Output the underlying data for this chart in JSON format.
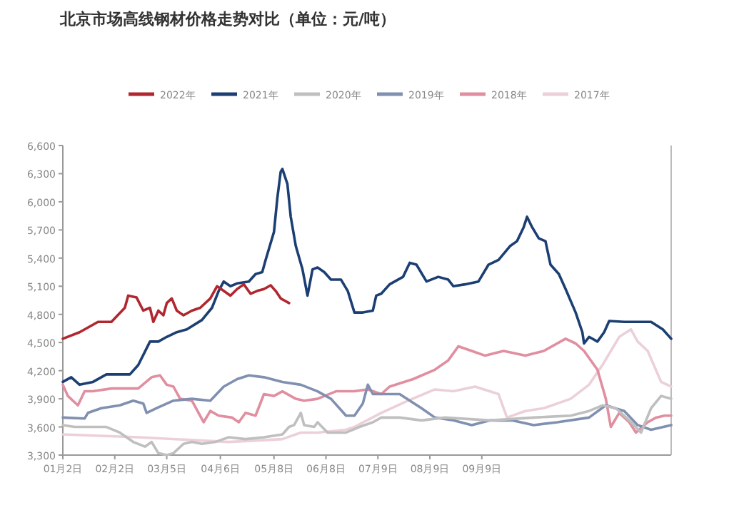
{
  "chart_data": {
    "type": "line",
    "title": "北京市场高线钢材价格走势对比（单位：元/吨）",
    "legend": "top",
    "marker": "none",
    "line_style": "solid",
    "grid": false,
    "xlim": [
      "--01-02",
      "--12-31"
    ],
    "ylim": [
      3300,
      6600
    ],
    "xticks": [
      {
        "value": "--01-02",
        "label": "01月2日"
      },
      {
        "value": "--02-02",
        "label": "02月2日"
      },
      {
        "value": "--03-05",
        "label": "03月5日"
      },
      {
        "value": "--04-06",
        "label": "04月6日"
      },
      {
        "value": "--05-08",
        "label": "05月8日"
      },
      {
        "value": "--06-08",
        "label": "06月8日"
      },
      {
        "value": "--07-09",
        "label": "07月9日"
      },
      {
        "value": "--08-09",
        "label": "08月9日"
      },
      {
        "value": "--09-09",
        "label": "09月9日"
      }
    ],
    "yticks": [
      {
        "value": 3300,
        "label": "3,300"
      },
      {
        "value": 3600,
        "label": "3,600"
      },
      {
        "value": 3900,
        "label": "3,900"
      },
      {
        "value": 4200,
        "label": "4,200"
      },
      {
        "value": 4500,
        "label": "4,500"
      },
      {
        "value": 4800,
        "label": "4,800"
      },
      {
        "value": 5100,
        "label": "5,100"
      },
      {
        "value": 5400,
        "label": "5,400"
      },
      {
        "value": 5700,
        "label": "5,700"
      },
      {
        "value": 6000,
        "label": "6,000"
      },
      {
        "value": 6300,
        "label": "6,300"
      },
      {
        "value": 6600,
        "label": "6,600"
      }
    ],
    "series": [
      {
        "name": "2022年",
        "color": "#b0272f",
        "x": [
          "--01-02",
          "--01-12",
          "--01-23",
          "--01-31",
          "--02-08",
          "--02-10",
          "--02-15",
          "--02-19",
          "--02-23",
          "--02-25",
          "--02-28",
          "--03-03",
          "--03-05",
          "--03-08",
          "--03-11",
          "--03-15",
          "--03-20",
          "--03-25",
          "--03-31",
          "--04-04",
          "--04-08",
          "--04-12",
          "--04-16",
          "--04-20",
          "--04-24",
          "--04-28",
          "--05-02",
          "--05-06",
          "--05-09",
          "--05-12",
          "--05-14",
          "--05-17"
        ],
        "values": [
          4540,
          4610,
          4720,
          4720,
          4870,
          5000,
          4980,
          4840,
          4870,
          4720,
          4840,
          4790,
          4920,
          4970,
          4840,
          4790,
          4840,
          4870,
          4970,
          5100,
          5050,
          5000,
          5070,
          5120,
          5020,
          5050,
          5070,
          5110,
          5050,
          4970,
          4950,
          4920
        ]
      },
      {
        "name": "2021年",
        "color": "#1c3f73",
        "x": [
          "--01-02",
          "--01-07",
          "--01-12",
          "--01-20",
          "--01-28",
          "--02-11",
          "--02-16",
          "--02-23",
          "--02-28",
          "--03-05",
          "--03-11",
          "--03-17",
          "--03-26",
          "--04-01",
          "--04-05",
          "--04-08",
          "--04-12",
          "--04-16",
          "--04-23",
          "--04-27",
          "--05-01",
          "--05-03",
          "--05-08",
          "--05-10",
          "--05-12",
          "--05-13",
          "--05-16",
          "--05-18",
          "--05-21",
          "--05-25",
          "--05-28",
          "--05-31",
          "--06-03",
          "--06-07",
          "--06-11",
          "--06-17",
          "--06-21",
          "--06-25",
          "--06-30",
          "--07-06",
          "--07-08",
          "--07-11",
          "--07-16",
          "--07-24",
          "--07-28",
          "--08-01",
          "--08-07",
          "--08-14",
          "--08-20",
          "--08-23",
          "--08-30",
          "--09-07",
          "--09-13",
          "--09-19",
          "--09-26",
          "--09-30",
          "--10-04",
          "--10-06",
          "--10-09",
          "--10-13",
          "--10-17",
          "--10-20",
          "--10-25",
          "--10-29",
          "--11-04",
          "--11-08",
          "--11-09",
          "--11-12",
          "--11-17",
          "--11-21",
          "--11-24",
          "--12-03",
          "--12-19",
          "--12-26",
          "--12-31"
        ],
        "values": [
          4080,
          4130,
          4050,
          4080,
          4160,
          4160,
          4260,
          4510,
          4510,
          4560,
          4610,
          4640,
          4740,
          4870,
          5050,
          5150,
          5100,
          5130,
          5150,
          5230,
          5250,
          5380,
          5680,
          6040,
          6320,
          6350,
          6190,
          5840,
          5530,
          5280,
          5000,
          5280,
          5300,
          5250,
          5170,
          5170,
          5050,
          4820,
          4820,
          4840,
          5000,
          5020,
          5120,
          5200,
          5350,
          5330,
          5150,
          5200,
          5170,
          5100,
          5120,
          5150,
          5330,
          5380,
          5530,
          5580,
          5730,
          5840,
          5730,
          5610,
          5580,
          5330,
          5230,
          5070,
          4820,
          4610,
          4490,
          4560,
          4510,
          4610,
          4730,
          4720,
          4720,
          4640,
          4540
        ]
      },
      {
        "name": "2020年",
        "color": "#bfbfbf",
        "x": [
          "--01-02",
          "--01-09",
          "--01-28",
          "--02-05",
          "--02-13",
          "--02-20",
          "--02-24",
          "--02-28",
          "--03-05",
          "--03-09",
          "--03-15",
          "--03-20",
          "--03-26",
          "--04-03",
          "--04-11",
          "--04-21",
          "--05-02",
          "--05-13",
          "--05-17",
          "--05-20",
          "--05-24",
          "--05-26",
          "--06-01",
          "--06-03",
          "--06-09",
          "--06-20",
          "--06-28",
          "--07-06",
          "--07-11",
          "--07-22",
          "--08-04",
          "--08-18",
          "--09-14",
          "--10-10",
          "--11-01",
          "--11-12",
          "--11-20",
          "--11-28",
          "--12-06",
          "--12-13",
          "--12-19",
          "--12-25",
          "--12-31"
        ],
        "values": [
          3620,
          3600,
          3600,
          3540,
          3440,
          3390,
          3440,
          3320,
          3300,
          3320,
          3420,
          3440,
          3420,
          3440,
          3490,
          3470,
          3490,
          3520,
          3600,
          3620,
          3750,
          3620,
          3600,
          3650,
          3540,
          3540,
          3600,
          3650,
          3700,
          3700,
          3670,
          3700,
          3670,
          3700,
          3720,
          3770,
          3830,
          3800,
          3670,
          3540,
          3800,
          3930,
          3900
        ]
      },
      {
        "name": "2019年",
        "color": "#8090b0",
        "x": [
          "--01-02",
          "--01-15",
          "--01-17",
          "--01-25",
          "--02-05",
          "--02-13",
          "--02-19",
          "--02-21",
          "--02-27",
          "--03-09",
          "--03-20",
          "--03-31",
          "--04-08",
          "--04-16",
          "--04-23",
          "--05-02",
          "--05-13",
          "--05-24",
          "--06-03",
          "--06-11",
          "--06-20",
          "--06-25",
          "--06-30",
          "--07-03",
          "--07-06",
          "--07-11",
          "--07-22",
          "--08-04",
          "--08-12",
          "--08-23",
          "--09-03",
          "--09-14",
          "--09-27",
          "--10-10",
          "--10-24",
          "--11-12",
          "--11-22",
          "--12-03",
          "--12-11",
          "--12-19",
          "--12-31"
        ],
        "values": [
          3700,
          3690,
          3750,
          3800,
          3830,
          3880,
          3850,
          3750,
          3800,
          3880,
          3900,
          3880,
          4030,
          4110,
          4150,
          4130,
          4080,
          4050,
          3980,
          3900,
          3720,
          3720,
          3850,
          4050,
          3950,
          3950,
          3950,
          3800,
          3700,
          3670,
          3620,
          3670,
          3670,
          3620,
          3650,
          3700,
          3830,
          3770,
          3620,
          3570,
          3620
        ]
      },
      {
        "name": "2018年",
        "color": "#e08ea0",
        "x": [
          "--01-02",
          "--01-05",
          "--01-11",
          "--01-15",
          "--01-20",
          "--01-31",
          "--02-16",
          "--02-24",
          "--03-01",
          "--03-05",
          "--03-09",
          "--03-13",
          "--03-20",
          "--03-24",
          "--03-27",
          "--03-31",
          "--04-05",
          "--04-13",
          "--04-17",
          "--04-21",
          "--04-27",
          "--05-02",
          "--05-08",
          "--05-13",
          "--05-21",
          "--05-26",
          "--06-03",
          "--06-14",
          "--06-25",
          "--07-03",
          "--07-11",
          "--07-16",
          "--07-30",
          "--08-12",
          "--08-20",
          "--08-26",
          "--09-03",
          "--09-11",
          "--09-22",
          "--10-05",
          "--10-16",
          "--10-29",
          "--11-04",
          "--11-09",
          "--11-17",
          "--11-22",
          "--11-25",
          "--11-30",
          "--12-06",
          "--12-10",
          "--12-17",
          "--12-22",
          "--12-27",
          "--12-31"
        ],
        "values": [
          4050,
          3930,
          3830,
          3980,
          3980,
          4010,
          4010,
          4130,
          4150,
          4050,
          4030,
          3900,
          3880,
          3750,
          3650,
          3770,
          3720,
          3700,
          3650,
          3750,
          3720,
          3950,
          3930,
          3980,
          3900,
          3880,
          3900,
          3980,
          3980,
          4000,
          3950,
          4030,
          4110,
          4210,
          4310,
          4460,
          4410,
          4360,
          4410,
          4360,
          4410,
          4540,
          4490,
          4410,
          4210,
          3900,
          3600,
          3750,
          3650,
          3540,
          3650,
          3700,
          3720,
          3720
        ]
      },
      {
        "name": "2017年",
        "color": "#ecd0d8",
        "x": [
          "--01-02",
          "--02-16",
          "--04-11",
          "--05-13",
          "--05-24",
          "--06-03",
          "--06-20",
          "--06-25",
          "--07-11",
          "--07-27",
          "--08-12",
          "--08-23",
          "--09-05",
          "--09-19",
          "--09-24",
          "--10-05",
          "--10-16",
          "--11-01",
          "--11-12",
          "--11-20",
          "--11-30",
          "--12-07",
          "--12-11",
          "--12-17",
          "--12-25",
          "--12-31"
        ],
        "values": [
          3520,
          3490,
          3440,
          3470,
          3540,
          3540,
          3570,
          3600,
          3750,
          3880,
          4000,
          3980,
          4030,
          3950,
          3700,
          3770,
          3800,
          3900,
          4050,
          4260,
          4560,
          4640,
          4510,
          4410,
          4080,
          4030
        ]
      }
    ]
  }
}
